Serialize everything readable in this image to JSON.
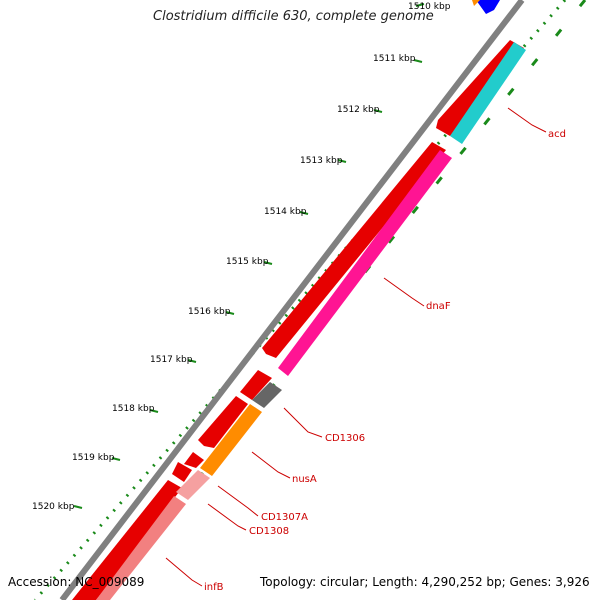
{
  "title": "Clostridium difficile 630, complete genome",
  "footer": {
    "accession": "Accession: NC_009089",
    "summary": "Topology: circular; Length: 4,290,252 bp; Genes: 3,926"
  },
  "ticks": [
    "1510 kbp",
    "1511 kbp",
    "1512 kbp",
    "1513 kbp",
    "1514 kbp",
    "1515 kbp",
    "1516 kbp",
    "1517 kbp",
    "1518 kbp",
    "1519 kbp",
    "1520 kbp"
  ],
  "gene_labels": [
    "acd",
    "dnaF",
    "CD1306",
    "nusA",
    "CD1307A",
    "CD1308",
    "infB"
  ],
  "colors": {
    "backbone": "#808080",
    "forward_genes": "#e60000",
    "tick_dots": "#1a8a1a",
    "label_text": "#cc0000",
    "acd": "#22cccc",
    "dnaF": "#ff1493",
    "CD1306": "#666666",
    "nusA": "#ff8c00",
    "infB": "#f28080",
    "blue_gene": "#0000ff"
  }
}
